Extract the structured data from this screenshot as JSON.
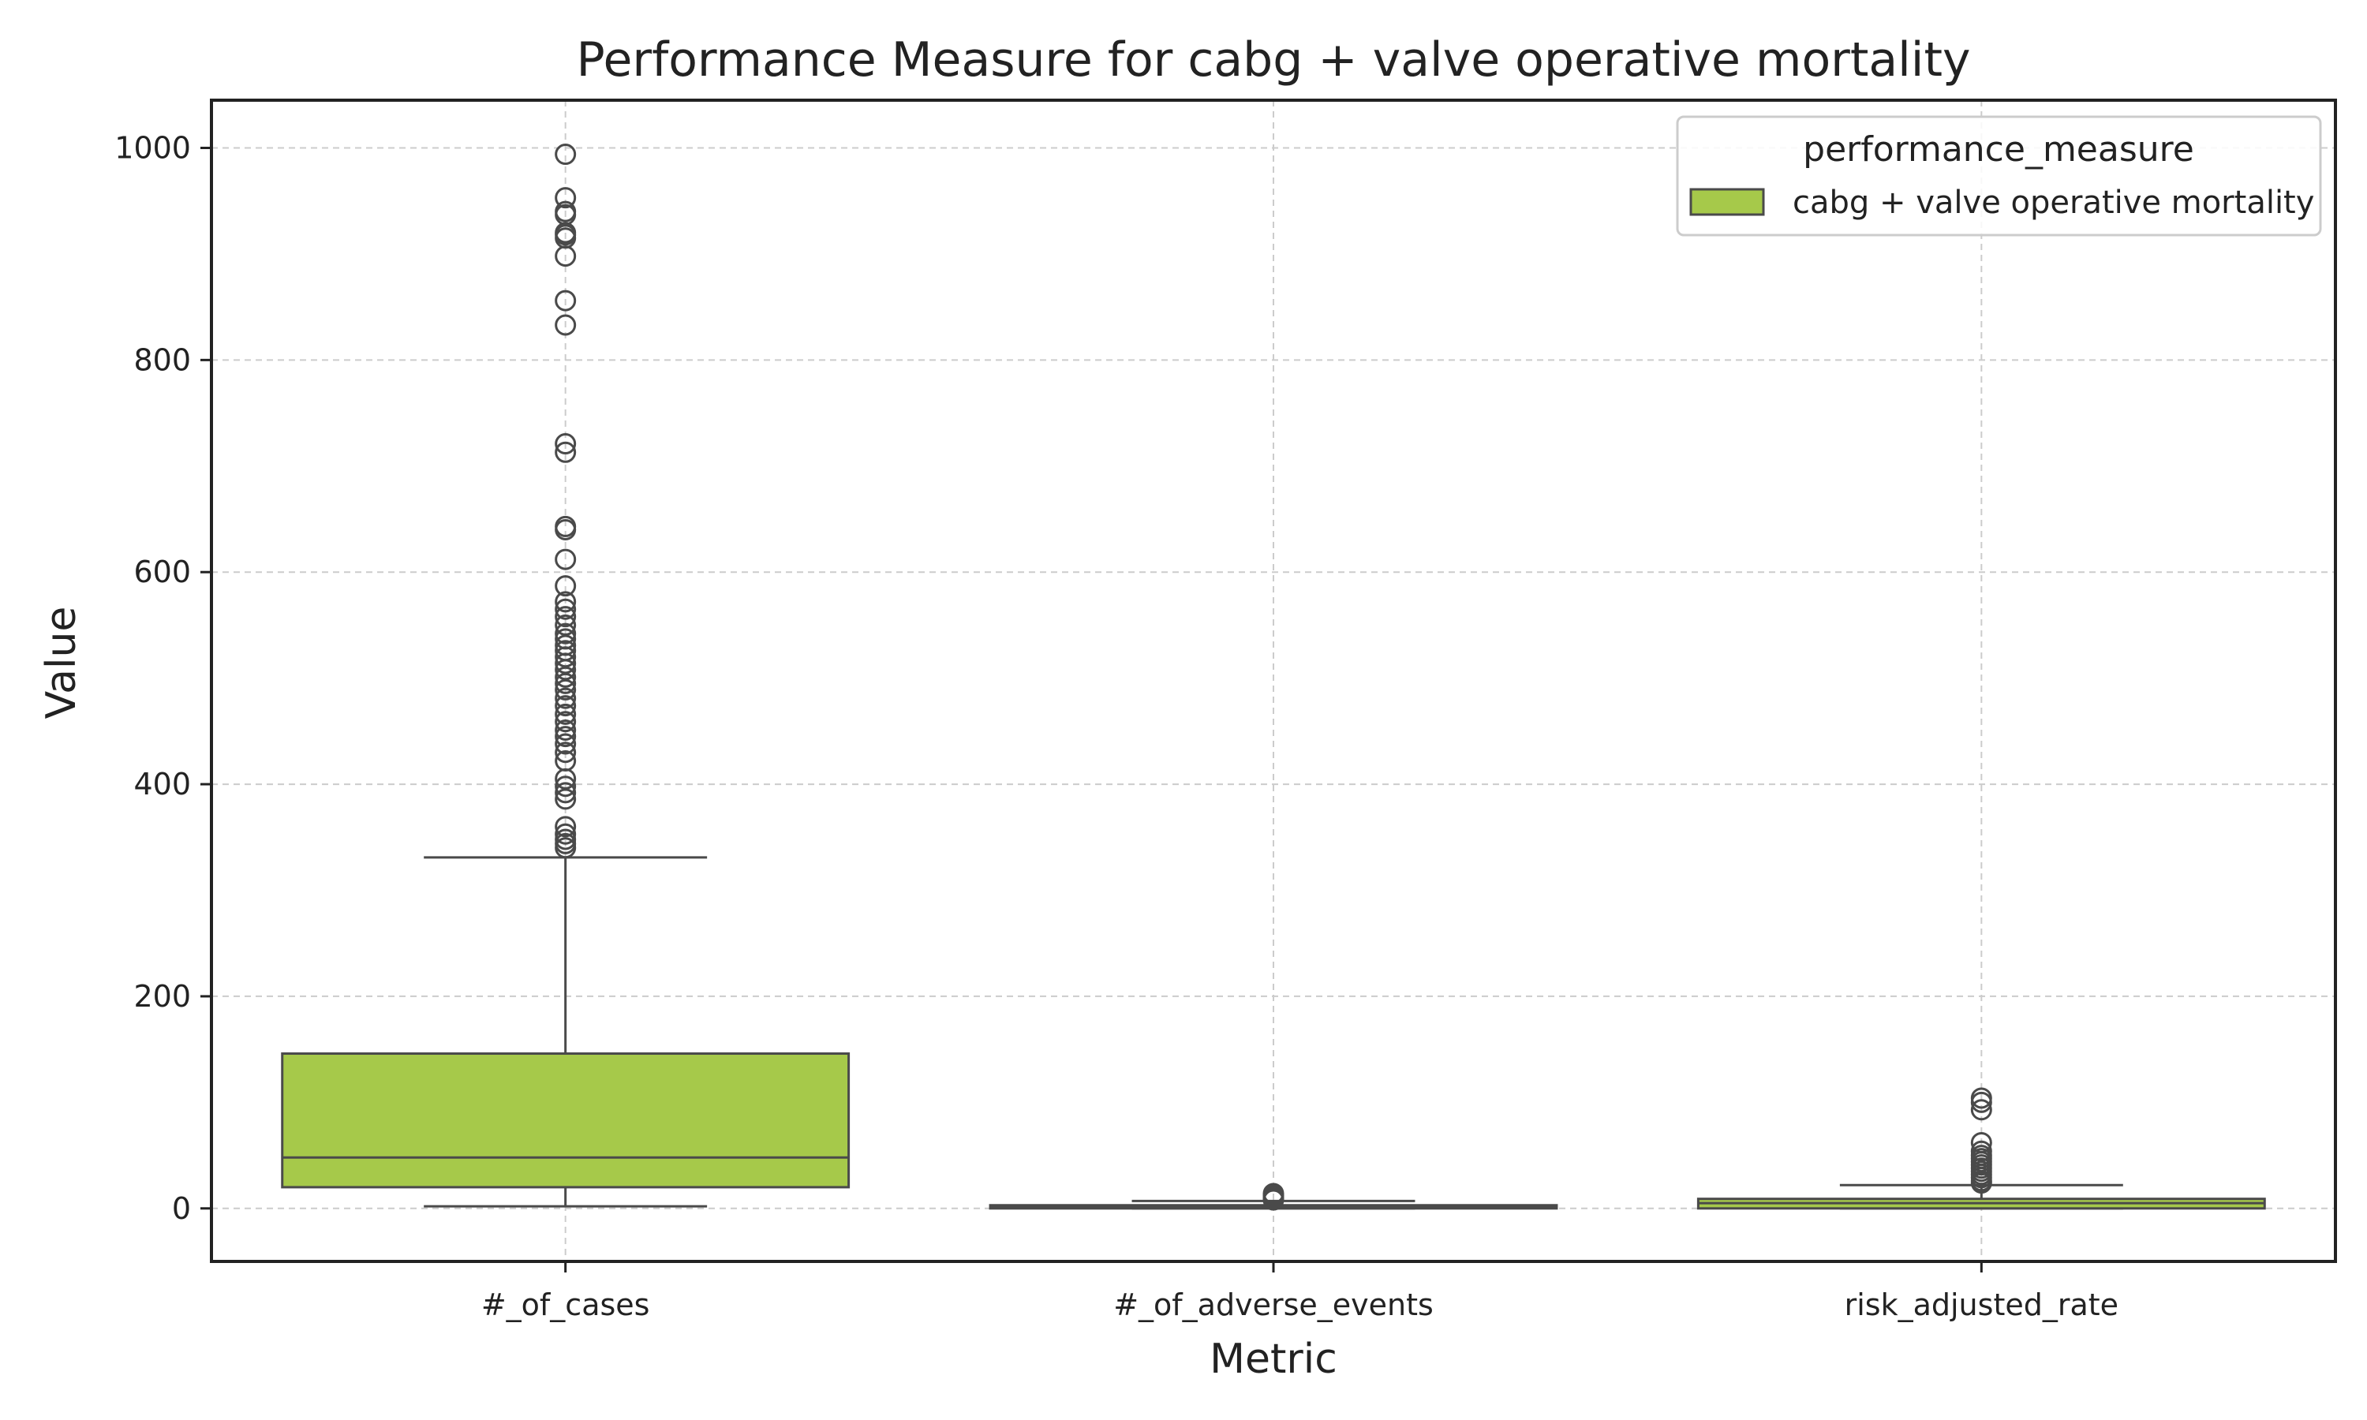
{
  "chart_data": {
    "type": "box",
    "title": "Performance Measure for cabg + valve operative mortality",
    "xlabel": "Metric",
    "ylabel": "Value",
    "categories": [
      "#_of_cases",
      "#_of_adverse_events",
      "risk_adjusted_rate"
    ],
    "ylim": [
      -50,
      1045
    ],
    "yticks": [
      0,
      200,
      400,
      600,
      800,
      1000
    ],
    "grid": true,
    "legend": {
      "title": "performance_measure",
      "placement": "upper-right",
      "entries": [
        {
          "label": "cabg + valve operative mortality",
          "color": "#a6c94a"
        }
      ]
    },
    "box_color": "#a6c94a",
    "line_color": "#4a4a4a",
    "series": [
      {
        "name": "cabg + valve operative mortality",
        "boxes": [
          {
            "category": "#_of_cases",
            "whisker_low": 2,
            "q1": 20,
            "median": 48,
            "q3": 146,
            "whisker_high": 331,
            "outliers": [
              994,
              953,
              940,
              937,
              920,
              918,
              915,
              898,
              856,
              833,
              721,
              713,
              643,
              640,
              612,
              587,
              572,
              565,
              558,
              550,
              542,
              537,
              531,
              526,
              520,
              514,
              508,
              501,
              495,
              489,
              481,
              474,
              466,
              459,
              451,
              445,
              438,
              430,
              422,
              405,
              398,
              392,
              386,
              360,
              353,
              348,
              344,
              340
            ]
          },
          {
            "category": "#_of_adverse_events",
            "whisker_low": 0,
            "q1": 0,
            "median": 1,
            "q3": 3,
            "whisker_high": 7,
            "outliers": [
              8,
              10,
              12,
              14
            ]
          },
          {
            "category": "risk_adjusted_rate",
            "whisker_low": 0,
            "q1": 0,
            "median": 5,
            "q3": 9,
            "whisker_high": 22,
            "outliers": [
              104,
              100,
              93,
              62,
              54,
              50,
              47,
              44,
              41,
              38,
              35,
              32,
              29,
              26,
              24
            ]
          }
        ]
      }
    ]
  }
}
